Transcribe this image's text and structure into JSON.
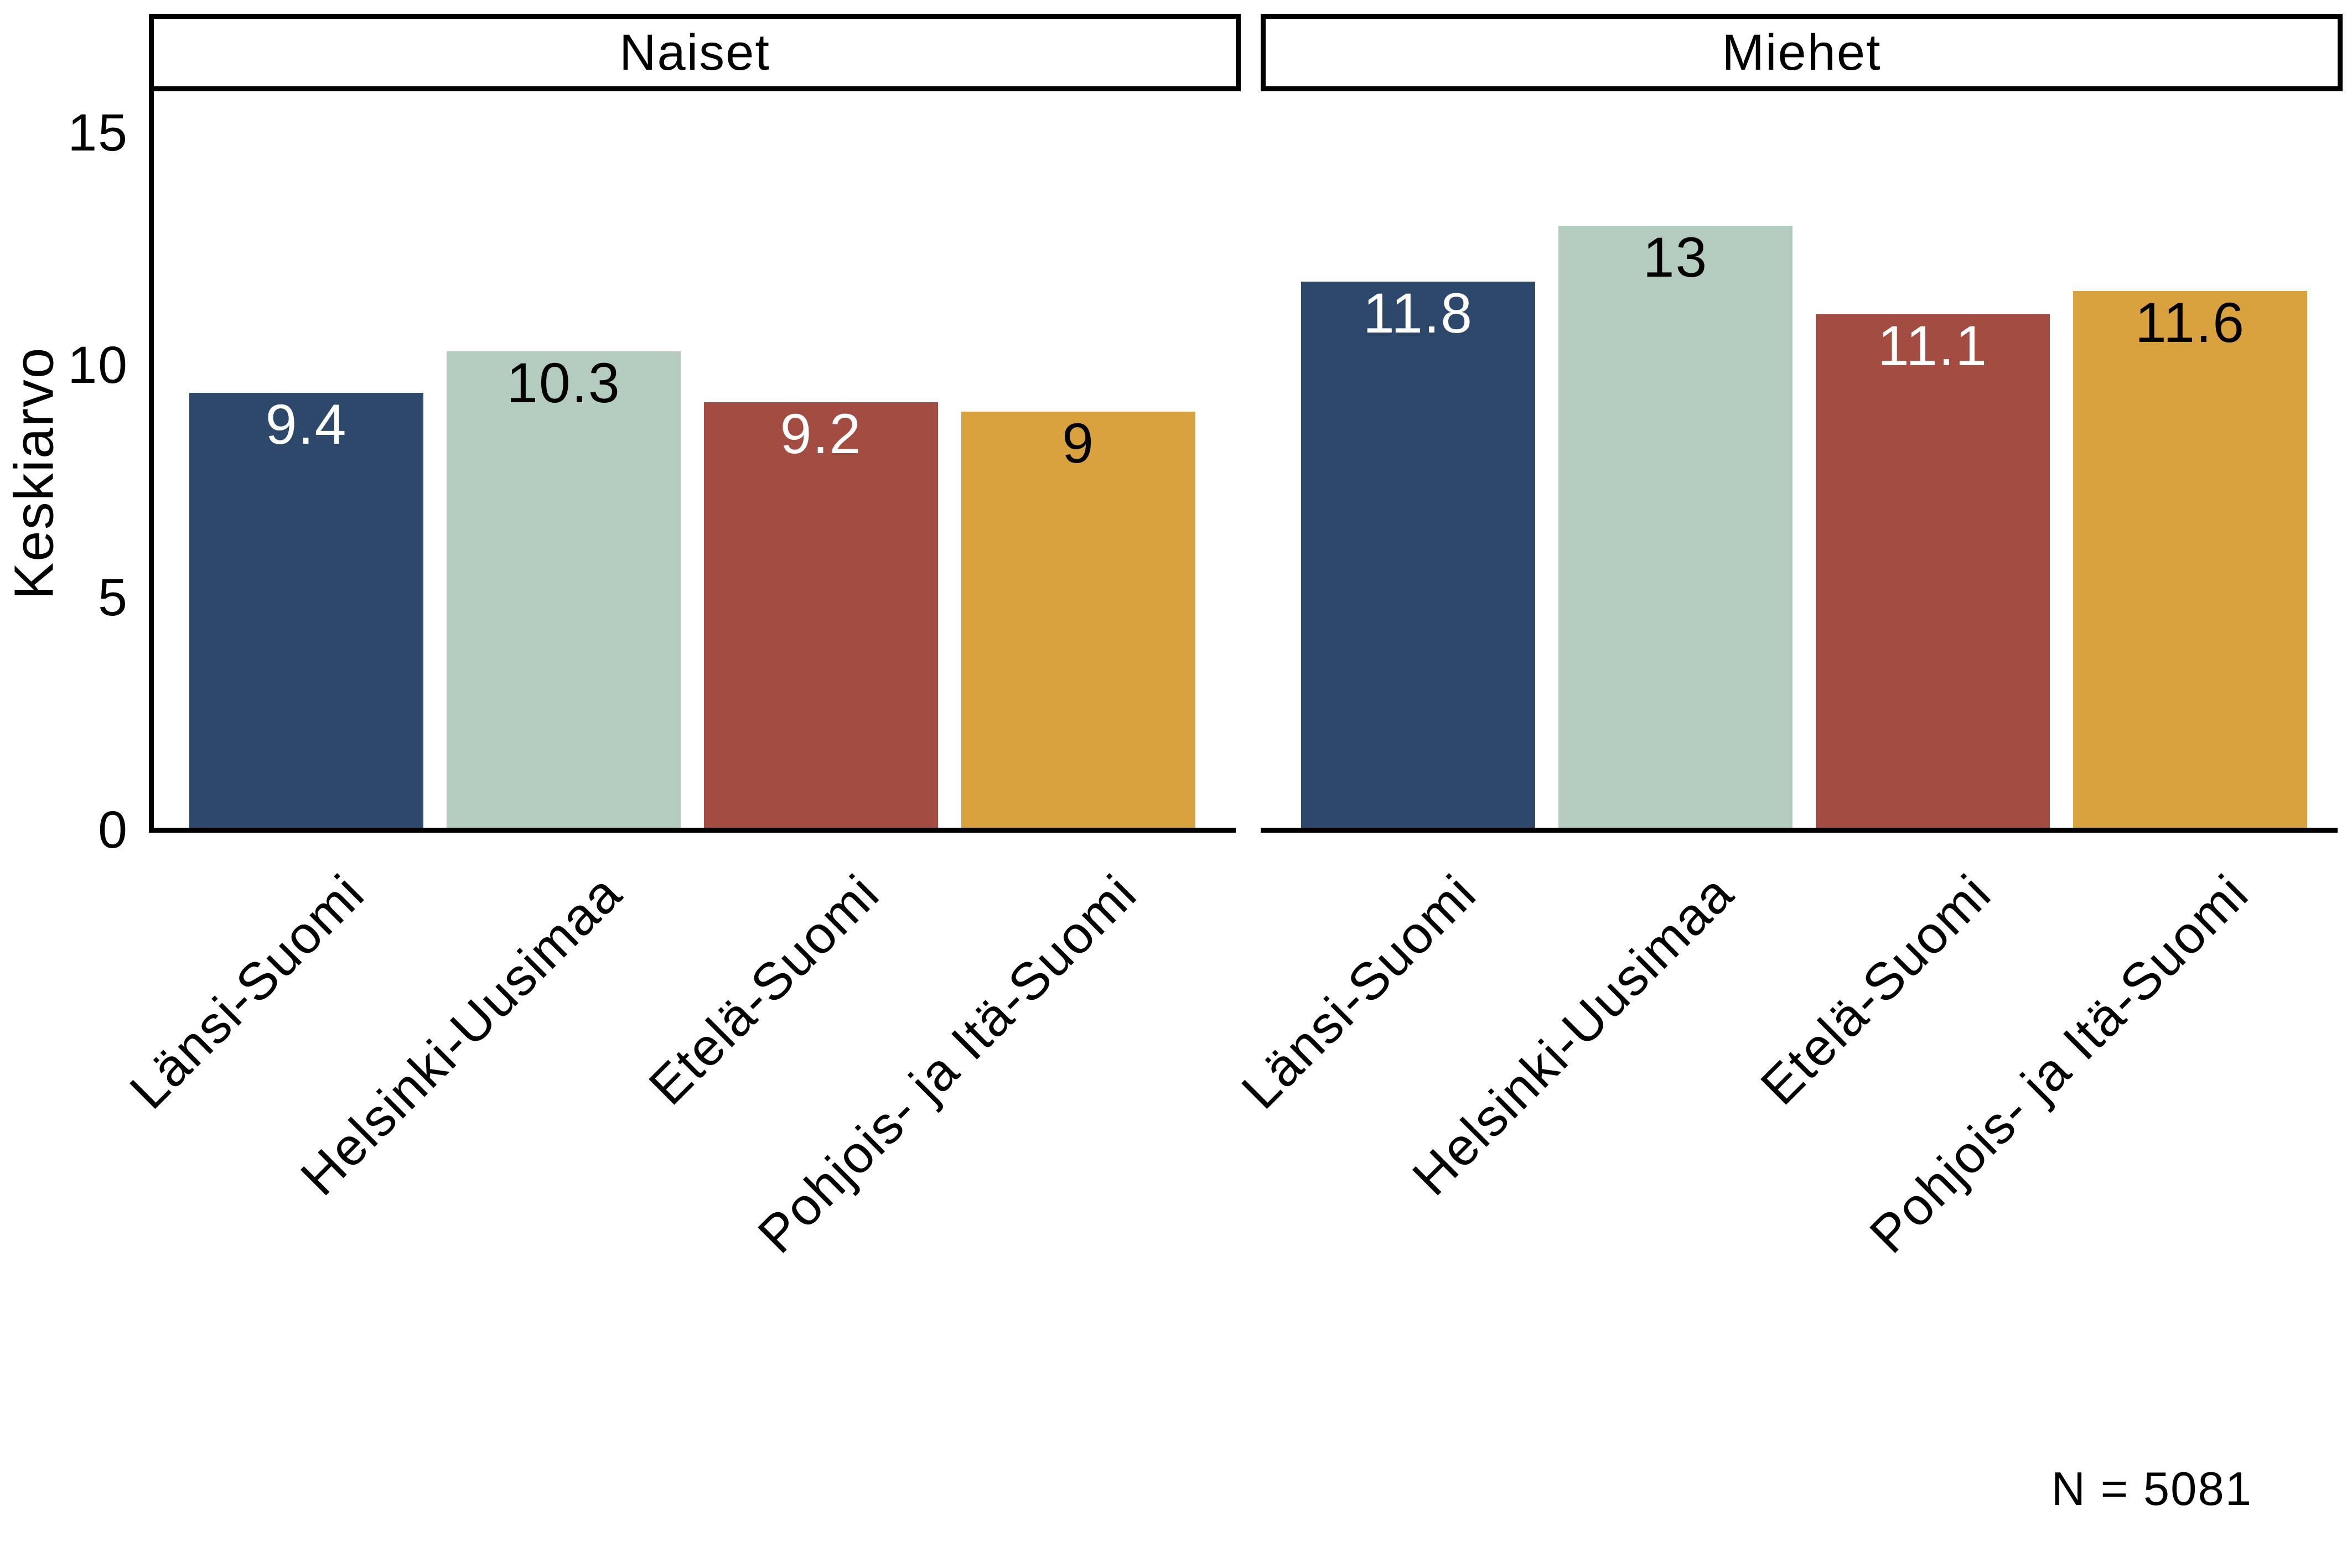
{
  "chart_data": {
    "type": "bar",
    "title": "",
    "ylabel": "Keskiarvo",
    "categories": [
      "Länsi-Suomi",
      "Helsinki-Uusimaa",
      "Etelä-Suomi",
      "Pohjois- ja Itä-Suomi"
    ],
    "facets": [
      {
        "label": "Naiset",
        "values": [
          9.4,
          10.3,
          9.2,
          9
        ],
        "value_labels": [
          "9.4",
          "10.3",
          "9.2",
          "9"
        ]
      },
      {
        "label": "Miehet",
        "values": [
          11.8,
          13,
          11.1,
          11.6
        ],
        "value_labels": [
          "11.8",
          "13",
          "11.1",
          "11.6"
        ]
      }
    ],
    "bar_colors": [
      "#2e486c",
      "#b4ccbe",
      "#a34c41",
      "#d9a23e"
    ],
    "value_label_colors": [
      "#ffffff",
      "#000000",
      "#ffffff",
      "#000000"
    ],
    "yticks": [
      0,
      5,
      10,
      15
    ],
    "ylim": [
      0,
      16
    ],
    "grid": false,
    "legend": "none",
    "axis_color": "#000000",
    "annotation": "N = 5081"
  }
}
